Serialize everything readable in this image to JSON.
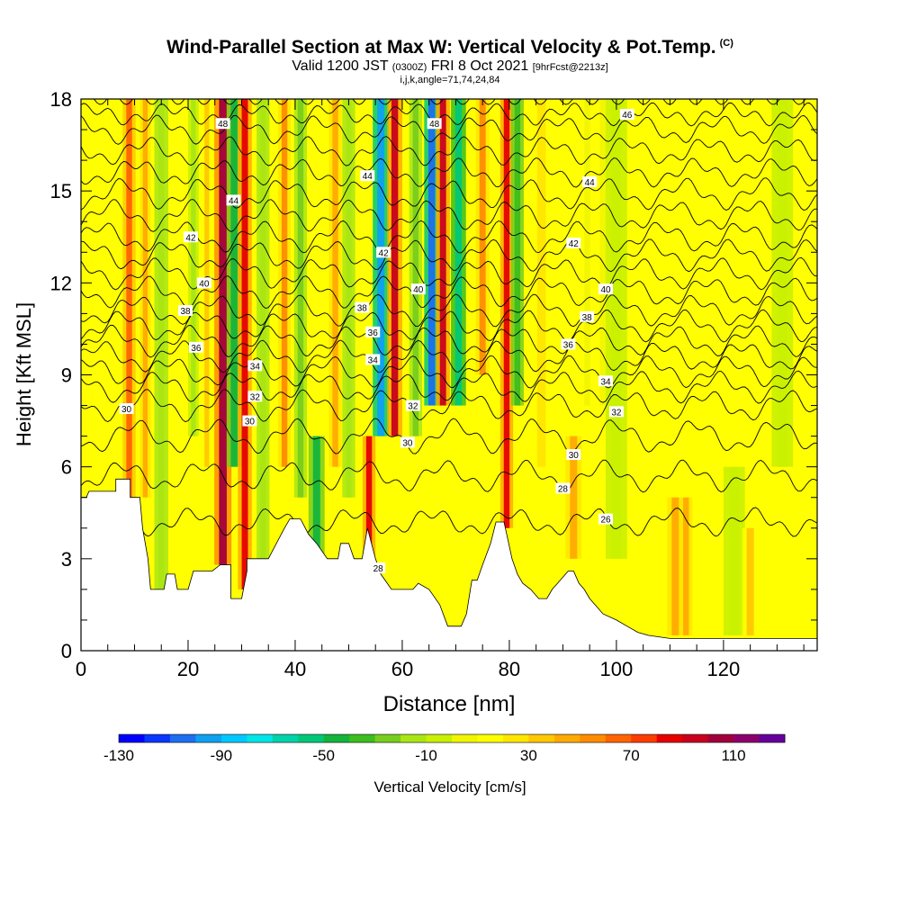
{
  "header": {
    "title": "Wind-Parallel Section at Max W: Vertical Velocity & Pot.Temp.",
    "title_tag": "(C)",
    "valid_prefix": "Valid 1200 JST",
    "valid_utc": "(0300Z)",
    "valid_date": "FRI 8 Oct 2021",
    "forecast": "[9hrFcst@2213z]",
    "params": "i,j,k,angle=71,74,24,84"
  },
  "colors": {
    "ramp": [
      "#0000ff",
      "#0a37ff",
      "#1e6ef0",
      "#0fa0f0",
      "#00c8ff",
      "#00e6e6",
      "#00d2aa",
      "#00c878",
      "#14b43c",
      "#3cbe1e",
      "#78cd1e",
      "#aae614",
      "#c8f000",
      "#f0f500",
      "#ffff00",
      "#ffe600",
      "#ffc800",
      "#ffaa00",
      "#ff8c00",
      "#ff6400",
      "#ff3c00",
      "#e60000",
      "#c8001e",
      "#a0003c",
      "#8c006e",
      "#64009b"
    ],
    "background_fill": "#ffff00",
    "terrain": "#ffffff",
    "contour": "#000000"
  },
  "chart_data": {
    "type": "heatmap",
    "xlabel": "Distance [nm]",
    "ylabel": "Height [Kft MSL]",
    "xlim": [
      0,
      137.5
    ],
    "ylim": [
      0,
      18
    ],
    "xticks": [
      0,
      20,
      40,
      60,
      80,
      100,
      120
    ],
    "yticks": [
      0,
      3,
      6,
      9,
      12,
      15,
      18
    ],
    "colorbar": {
      "label": "Vertical Velocity [cm/s]",
      "range": [
        -130,
        130
      ],
      "tick_values": [
        -130,
        -90,
        -50,
        -10,
        30,
        70,
        110
      ]
    },
    "vertical_velocity_bands": [
      {
        "x": 9,
        "w": 1.2,
        "ymin": 4.5,
        "ymax": 18,
        "v": 60
      },
      {
        "x": 12,
        "w": 1.0,
        "ymin": 5,
        "ymax": 18,
        "v": 40
      },
      {
        "x": 15,
        "w": 1.3,
        "ymin": 2,
        "ymax": 18,
        "v": -20
      },
      {
        "x": 21,
        "w": 1.0,
        "ymin": 7,
        "ymax": 18,
        "v": -15
      },
      {
        "x": 23.5,
        "w": 1.0,
        "ymin": 6,
        "ymax": 18,
        "v": 30
      },
      {
        "x": 26.5,
        "w": 1.6,
        "ymin": 2.8,
        "ymax": 18,
        "v": 100
      },
      {
        "x": 28.6,
        "w": 1.4,
        "ymin": 6,
        "ymax": 18,
        "v": -50
      },
      {
        "x": 30.6,
        "w": 1.3,
        "ymin": 2,
        "ymax": 18,
        "v": 85
      },
      {
        "x": 34,
        "w": 1.2,
        "ymin": 3,
        "ymax": 18,
        "v": -20
      },
      {
        "x": 38,
        "w": 1.2,
        "ymin": 6,
        "ymax": 18,
        "v": 50
      },
      {
        "x": 41,
        "w": 1.2,
        "ymin": 5,
        "ymax": 18,
        "v": -30
      },
      {
        "x": 44,
        "w": 1.5,
        "ymin": 3,
        "ymax": 7,
        "v": -45
      },
      {
        "x": 47.5,
        "w": 1.2,
        "ymin": 6,
        "ymax": 18,
        "v": 40
      },
      {
        "x": 50,
        "w": 1.2,
        "ymin": 5,
        "ymax": 18,
        "v": -20
      },
      {
        "x": 53.8,
        "w": 1.2,
        "ymin": 3,
        "ymax": 7,
        "v": 80
      },
      {
        "x": 56,
        "w": 1.5,
        "ymin": 7,
        "ymax": 18,
        "v": -95
      },
      {
        "x": 58.6,
        "w": 1.4,
        "ymin": 7,
        "ymax": 18,
        "v": 90
      },
      {
        "x": 62.5,
        "w": 1.2,
        "ymin": 7,
        "ymax": 18,
        "v": -30
      },
      {
        "x": 65.5,
        "w": 1.4,
        "ymin": 8,
        "ymax": 18,
        "v": -105
      },
      {
        "x": 67.6,
        "w": 1.3,
        "ymin": 8,
        "ymax": 18,
        "v": 90
      },
      {
        "x": 70.5,
        "w": 1.4,
        "ymin": 8,
        "ymax": 18,
        "v": -60
      },
      {
        "x": 75,
        "w": 1.3,
        "ymin": 9,
        "ymax": 18,
        "v": 50
      },
      {
        "x": 79.5,
        "w": 1.2,
        "ymin": 4,
        "ymax": 18,
        "v": 80
      },
      {
        "x": 81.5,
        "w": 1.2,
        "ymin": 8,
        "ymax": 18,
        "v": -40
      },
      {
        "x": 86,
        "w": 1.8,
        "ymin": 6,
        "ymax": 18,
        "v": 25
      },
      {
        "x": 92,
        "w": 1.5,
        "ymin": 3,
        "ymax": 7,
        "v": 40
      },
      {
        "x": 96,
        "w": 2.0,
        "ymin": 8,
        "ymax": 18,
        "v": 10
      },
      {
        "x": 100,
        "w": 2.0,
        "ymin": 3,
        "ymax": 18,
        "v": -10
      },
      {
        "x": 111,
        "w": 1.5,
        "ymin": 0.5,
        "ymax": 5,
        "v": 45
      },
      {
        "x": 113,
        "w": 1.2,
        "ymin": 0.5,
        "ymax": 5,
        "v": 45
      },
      {
        "x": 122,
        "w": 2.0,
        "ymin": 0.5,
        "ymax": 6,
        "v": -10
      },
      {
        "x": 125,
        "w": 1.5,
        "ymin": 0.5,
        "ymax": 4,
        "v": 35
      },
      {
        "x": 131,
        "w": 2.0,
        "ymin": 6,
        "ymax": 18,
        "v": -8
      }
    ],
    "terrain_profile": [
      [
        0,
        5.0
      ],
      [
        1,
        5.0
      ],
      [
        1.5,
        5.2
      ],
      [
        6.5,
        5.2
      ],
      [
        6.5,
        5.6
      ],
      [
        9.2,
        5.6
      ],
      [
        9.2,
        5.0
      ],
      [
        11,
        5.0
      ],
      [
        11.5,
        4.0
      ],
      [
        12.5,
        3.0
      ],
      [
        13,
        2.0
      ],
      [
        15.5,
        2.0
      ],
      [
        16,
        2.5
      ],
      [
        17.5,
        2.5
      ],
      [
        18,
        2.0
      ],
      [
        20,
        2.0
      ],
      [
        21,
        2.6
      ],
      [
        24.5,
        2.6
      ],
      [
        26,
        2.8
      ],
      [
        28,
        2.8
      ],
      [
        28,
        1.7
      ],
      [
        30,
        1.7
      ],
      [
        31,
        2.6
      ],
      [
        31,
        3.0
      ],
      [
        35,
        3.0
      ],
      [
        36.5,
        3.5
      ],
      [
        38,
        4.0
      ],
      [
        39,
        4.3
      ],
      [
        41,
        4.3
      ],
      [
        42.5,
        3.8
      ],
      [
        44,
        3.5
      ],
      [
        46,
        3.0
      ],
      [
        48,
        3.0
      ],
      [
        48.5,
        3.5
      ],
      [
        50,
        3.5
      ],
      [
        51,
        3.0
      ],
      [
        52.5,
        3.0
      ],
      [
        53.5,
        4.0
      ],
      [
        55,
        3.0
      ],
      [
        56,
        2.5
      ],
      [
        58,
        2.0
      ],
      [
        62,
        2.0
      ],
      [
        63,
        2.2
      ],
      [
        65,
        2.0
      ],
      [
        67,
        1.5
      ],
      [
        68.5,
        0.8
      ],
      [
        71,
        0.8
      ],
      [
        72,
        1.2
      ],
      [
        73,
        2.3
      ],
      [
        74,
        2.3
      ],
      [
        75,
        2.8
      ],
      [
        76.5,
        3.5
      ],
      [
        77.5,
        4.2
      ],
      [
        79,
        4.2
      ],
      [
        79.5,
        3.8
      ],
      [
        80.5,
        3.0
      ],
      [
        81.5,
        2.5
      ],
      [
        82.5,
        2.2
      ],
      [
        84,
        2.0
      ],
      [
        85.5,
        1.7
      ],
      [
        87,
        1.7
      ],
      [
        88,
        2.0
      ],
      [
        89,
        2.2
      ],
      [
        91,
        2.6
      ],
      [
        92,
        2.6
      ],
      [
        93,
        2.2
      ],
      [
        94,
        2.0
      ],
      [
        95,
        1.7
      ],
      [
        96,
        1.5
      ],
      [
        97.5,
        1.2
      ],
      [
        100,
        1.0
      ],
      [
        102,
        0.8
      ],
      [
        104,
        0.6
      ],
      [
        106,
        0.5
      ],
      [
        110,
        0.4
      ],
      [
        137.5,
        0.4
      ]
    ],
    "theta_contours": [
      {
        "base": 18.0,
        "amp": 0.0,
        "label": "",
        "lx": 0
      },
      {
        "base": 17.5,
        "amp": 0.2,
        "label": "",
        "lx": 0
      },
      {
        "base": 17.0,
        "amp": 0.3,
        "label": "48",
        "lx": 27
      },
      {
        "base": 16.3,
        "amp": 0.3,
        "label": "46",
        "lx": 95
      },
      {
        "base": 15.6,
        "amp": 0.3,
        "label": "",
        "lx": 0
      },
      {
        "base": 14.9,
        "amp": 0.35,
        "label": "44",
        "lx": 28
      },
      {
        "base": 14.2,
        "amp": 0.35,
        "label": "",
        "lx": 0
      },
      {
        "base": 13.5,
        "amp": 0.35,
        "label": "42",
        "lx": 20
      },
      {
        "base": 12.9,
        "amp": 0.35,
        "label": "",
        "lx": 0
      },
      {
        "base": 12.3,
        "amp": 0.35,
        "label": "40",
        "lx": 23
      },
      {
        "base": 11.7,
        "amp": 0.35,
        "label": "",
        "lx": 0
      },
      {
        "base": 11.1,
        "amp": 0.35,
        "label": "38",
        "lx": 19
      },
      {
        "base": 10.6,
        "amp": 0.35,
        "label": "",
        "lx": 0
      },
      {
        "base": 10.1,
        "amp": 0.35,
        "label": "36",
        "lx": 22
      },
      {
        "base": 9.6,
        "amp": 0.35,
        "label": "",
        "lx": 0
      },
      {
        "base": 9.1,
        "amp": 0.35,
        "label": "34",
        "lx": 32
      },
      {
        "base": 8.6,
        "amp": 0.35,
        "label": "",
        "lx": 0
      },
      {
        "base": 8.0,
        "amp": 0.35,
        "label": "32",
        "lx": 32
      },
      {
        "base": 7.0,
        "amp": 0.4,
        "label": "30",
        "lx": 31
      },
      {
        "base": 5.7,
        "amp": 0.35,
        "label": "28",
        "lx": 88
      },
      {
        "base": 4.2,
        "amp": 0.3,
        "label": "26",
        "lx": 98
      }
    ],
    "contour_labels": [
      {
        "text": "48",
        "x": 26.5,
        "y": 17.2
      },
      {
        "text": "48",
        "x": 66,
        "y": 17.2
      },
      {
        "text": "46",
        "x": 102,
        "y": 17.5
      },
      {
        "text": "44",
        "x": 28.5,
        "y": 14.7
      },
      {
        "text": "44",
        "x": 53.5,
        "y": 15.5
      },
      {
        "text": "44",
        "x": 95,
        "y": 15.3
      },
      {
        "text": "42",
        "x": 20.5,
        "y": 13.5
      },
      {
        "text": "42",
        "x": 56.5,
        "y": 13.0
      },
      {
        "text": "42",
        "x": 92,
        "y": 13.3
      },
      {
        "text": "40",
        "x": 23,
        "y": 12.0
      },
      {
        "text": "40",
        "x": 63,
        "y": 11.8
      },
      {
        "text": "40",
        "x": 98,
        "y": 11.8
      },
      {
        "text": "38",
        "x": 19.5,
        "y": 11.1
      },
      {
        "text": "38",
        "x": 52.5,
        "y": 11.2
      },
      {
        "text": "38",
        "x": 94.5,
        "y": 10.9
      },
      {
        "text": "36",
        "x": 21.5,
        "y": 9.9
      },
      {
        "text": "36",
        "x": 54.5,
        "y": 10.4
      },
      {
        "text": "36",
        "x": 91,
        "y": 10.0
      },
      {
        "text": "34",
        "x": 32.5,
        "y": 9.3
      },
      {
        "text": "34",
        "x": 54.5,
        "y": 9.5
      },
      {
        "text": "34",
        "x": 98,
        "y": 8.8
      },
      {
        "text": "32",
        "x": 32.5,
        "y": 8.3
      },
      {
        "text": "32",
        "x": 62,
        "y": 8.0
      },
      {
        "text": "32",
        "x": 100,
        "y": 7.8
      },
      {
        "text": "30",
        "x": 8.5,
        "y": 7.9
      },
      {
        "text": "30",
        "x": 31.5,
        "y": 7.5
      },
      {
        "text": "30",
        "x": 61,
        "y": 6.8
      },
      {
        "text": "30",
        "x": 92,
        "y": 6.4
      },
      {
        "text": "28",
        "x": 90,
        "y": 5.3
      },
      {
        "text": "28",
        "x": 55.5,
        "y": 2.7
      },
      {
        "text": "26",
        "x": 98,
        "y": 4.3
      }
    ]
  }
}
